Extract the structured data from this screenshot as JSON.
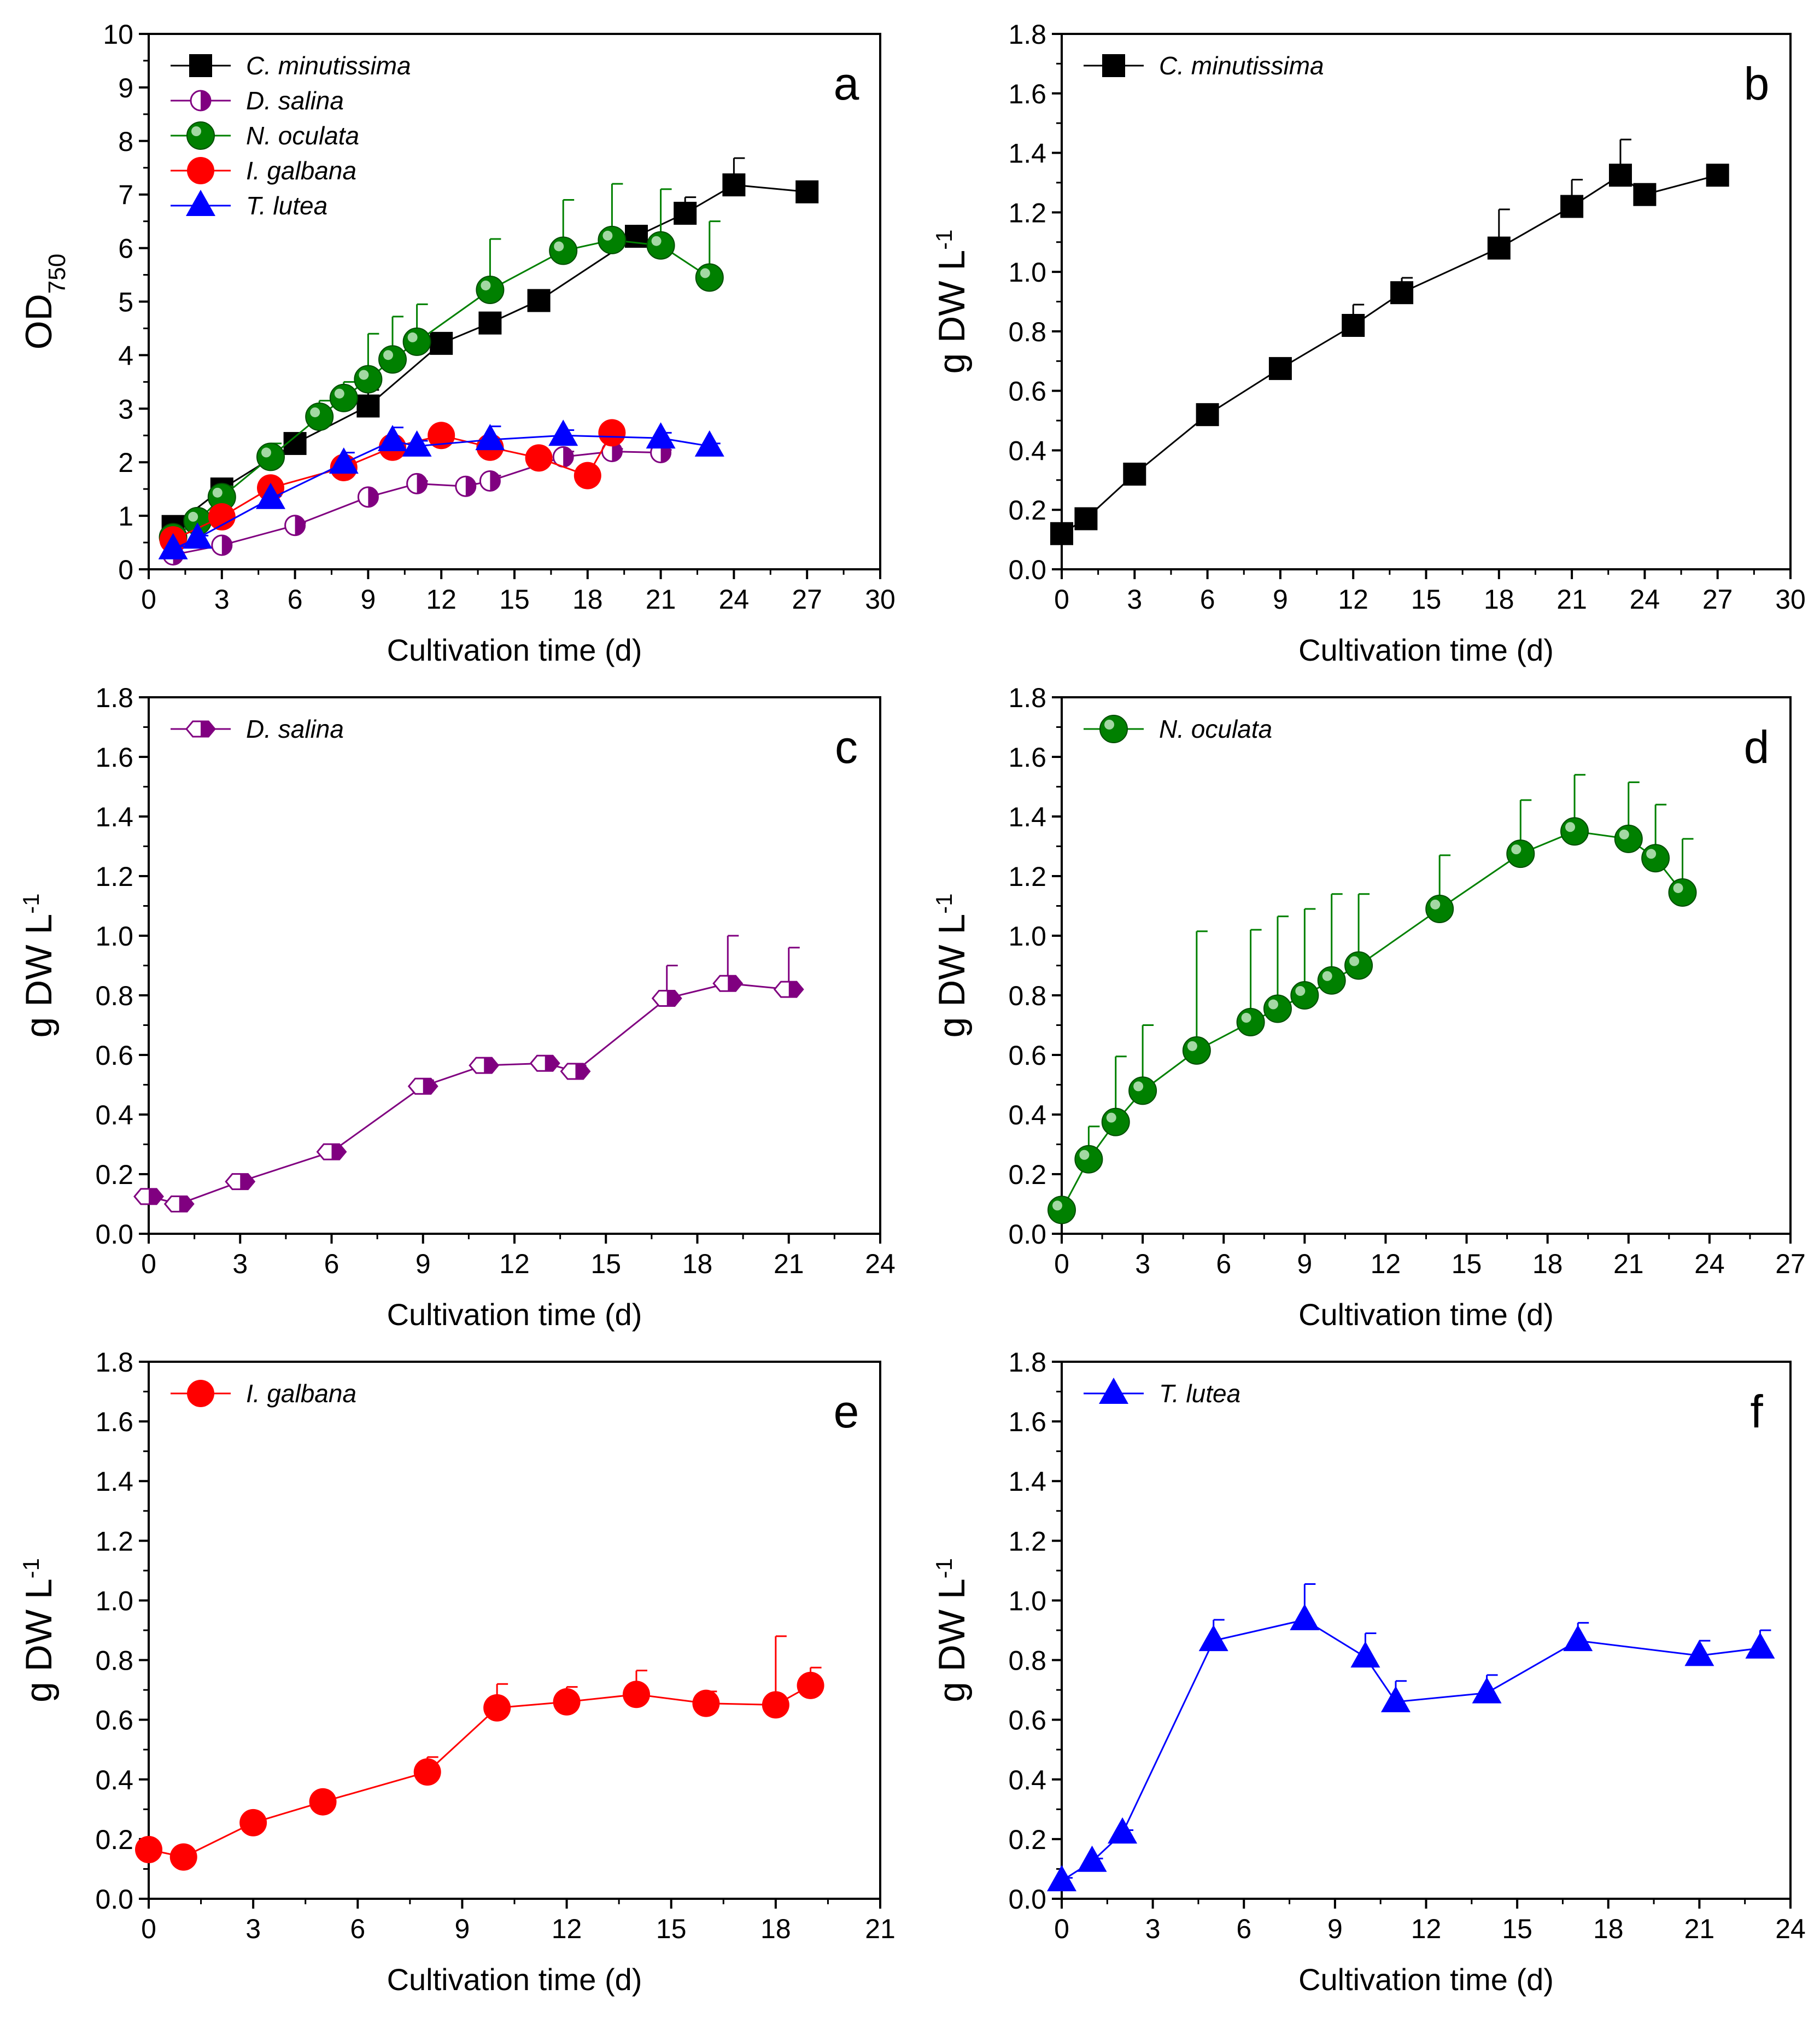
{
  "figure": {
    "panels_count": 6,
    "colors": {
      "black": "#000000",
      "purple": "#800080",
      "green": "#008000",
      "red": "#ff0000",
      "blue": "#0000ff"
    }
  },
  "chart_data": [
    {
      "panel": "a",
      "type": "line",
      "xlabel": "Cultivation time (d)",
      "ylabel_main": "OD",
      "ylabel_sub": "750",
      "xlim": [
        0,
        30
      ],
      "ylim": [
        0,
        10
      ],
      "xticks": [
        0,
        3,
        6,
        9,
        12,
        15,
        18,
        21,
        24,
        27,
        30
      ],
      "xtick_labels": [
        "0",
        "3",
        "6",
        "9",
        "12",
        "15",
        "18",
        "21",
        "24",
        "27",
        "30"
      ],
      "yticks": [
        0,
        1,
        2,
        3,
        4,
        5,
        6,
        7,
        8,
        9,
        10
      ],
      "ytick_labels": [
        "0",
        "1",
        "2",
        "3",
        "4",
        "5",
        "6",
        "7",
        "8",
        "9",
        "10"
      ],
      "legend_position": "top-left",
      "series": [
        {
          "name": "C. minutissima",
          "color": "#000000",
          "marker": "square",
          "x": [
            1,
            3,
            6,
            9,
            12,
            14,
            16,
            20,
            22,
            24,
            27
          ],
          "y": [
            0.8,
            1.5,
            2.35,
            3.05,
            4.22,
            4.6,
            5.02,
            6.22,
            6.65,
            7.18,
            7.05
          ],
          "err": [
            0.08,
            0.08,
            0.1,
            0.3,
            0.15,
            0.05,
            0.05,
            0.2,
            0.3,
            0.5,
            0.05
          ]
        },
        {
          "name": "D. salina",
          "color": "#800080",
          "marker": "halfcircle",
          "x": [
            1,
            3,
            6,
            9,
            11,
            13,
            14,
            17,
            19,
            21
          ],
          "y": [
            0.27,
            0.45,
            0.82,
            1.35,
            1.6,
            1.55,
            1.65,
            2.1,
            2.2,
            2.18
          ],
          "err": [
            0.05,
            0.05,
            0.05,
            0.05,
            0.05,
            0.05,
            0.1,
            0.1,
            0.05,
            0.05
          ]
        },
        {
          "name": "N. oculata",
          "color": "#008000",
          "marker": "sphere",
          "x": [
            1,
            2,
            3,
            5,
            7,
            8,
            9,
            10,
            11,
            14,
            17,
            19,
            21,
            23
          ],
          "y": [
            0.6,
            0.9,
            1.35,
            2.1,
            2.85,
            3.2,
            3.55,
            3.92,
            4.25,
            5.22,
            5.95,
            6.15,
            6.05,
            5.45
          ],
          "err": [
            0.1,
            0.1,
            0.2,
            0.25,
            0.3,
            0.3,
            0.85,
            0.8,
            0.7,
            0.95,
            0.95,
            1.05,
            1.05,
            1.05
          ]
        },
        {
          "name": "I. galbana",
          "color": "#ff0000",
          "marker": "circle",
          "x": [
            1,
            3,
            5,
            8,
            10,
            12,
            14,
            16,
            18,
            19
          ],
          "y": [
            0.55,
            0.98,
            1.52,
            1.9,
            2.28,
            2.5,
            2.28,
            2.08,
            1.75,
            2.55
          ],
          "err": [
            0.05,
            0.05,
            0.05,
            0.1,
            0.05,
            0.05,
            0.1,
            0.1,
            0.1,
            0.05
          ]
        },
        {
          "name": "T. lutea",
          "color": "#0000ff",
          "marker": "triangle",
          "x": [
            1,
            2,
            5,
            8,
            10,
            11,
            14,
            17,
            21,
            23
          ],
          "y": [
            0.38,
            0.58,
            1.32,
            1.98,
            2.4,
            2.3,
            2.42,
            2.5,
            2.45,
            2.3
          ],
          "err": [
            0.05,
            0.05,
            0.05,
            0.2,
            0.25,
            0.1,
            0.25,
            0.1,
            0.1,
            0.05
          ]
        }
      ]
    },
    {
      "panel": "b",
      "type": "line",
      "xlabel": "Cultivation time (d)",
      "ylabel_main": "g DW L",
      "ylabel_sup": "-1",
      "xlim": [
        0,
        30
      ],
      "ylim": [
        0,
        1.8
      ],
      "xticks": [
        0,
        3,
        6,
        9,
        12,
        15,
        18,
        21,
        24,
        27,
        30
      ],
      "xtick_labels": [
        "0",
        "3",
        "6",
        "9",
        "12",
        "15",
        "18",
        "21",
        "24",
        "27",
        "30"
      ],
      "yticks": [
        0,
        0.2,
        0.4,
        0.6,
        0.8,
        1.0,
        1.2,
        1.4,
        1.6,
        1.8
      ],
      "ytick_labels": [
        "0.0",
        "0.2",
        "0.4",
        "0.6",
        "0.8",
        "1.0",
        "1.2",
        "1.4",
        "1.6",
        "1.8"
      ],
      "legend_position": "top-left",
      "series": [
        {
          "name": "C. minutissima",
          "color": "#000000",
          "marker": "square",
          "x": [
            0,
            1,
            3,
            6,
            9,
            12,
            14,
            18,
            21,
            23,
            24,
            27
          ],
          "y": [
            0.12,
            0.17,
            0.32,
            0.52,
            0.675,
            0.82,
            0.93,
            1.08,
            1.22,
            1.325,
            1.26,
            1.325
          ],
          "err": [
            0.01,
            0.01,
            0.01,
            0.03,
            0.02,
            0.07,
            0.05,
            0.13,
            0.09,
            0.12,
            0.01,
            0.01
          ]
        }
      ]
    },
    {
      "panel": "c",
      "type": "line",
      "xlabel": "Cultivation time (d)",
      "ylabel_main": "g DW L",
      "ylabel_sup": "-1",
      "xlim": [
        0,
        24
      ],
      "ylim": [
        0,
        1.8
      ],
      "xticks": [
        0,
        3,
        6,
        9,
        12,
        15,
        18,
        21,
        24
      ],
      "xtick_labels": [
        "0",
        "3",
        "6",
        "9",
        "12",
        "15",
        "18",
        "21",
        "24"
      ],
      "yticks": [
        0,
        0.2,
        0.4,
        0.6,
        0.8,
        1.0,
        1.2,
        1.4,
        1.6,
        1.8
      ],
      "ytick_labels": [
        "0.0",
        "0.2",
        "0.4",
        "0.6",
        "0.8",
        "1.0",
        "1.2",
        "1.4",
        "1.6",
        "1.8"
      ],
      "legend_position": "top-left",
      "series": [
        {
          "name": "D. salina",
          "color": "#800080",
          "marker": "hexagon",
          "x": [
            0,
            1,
            3,
            6,
            9,
            11,
            13,
            14,
            17,
            19,
            21
          ],
          "y": [
            0.125,
            0.1,
            0.175,
            0.275,
            0.495,
            0.565,
            0.572,
            0.545,
            0.79,
            0.84,
            0.82
          ],
          "err": [
            0.01,
            0.01,
            0.01,
            0.01,
            0.02,
            0.01,
            0.01,
            0.02,
            0.11,
            0.16,
            0.14
          ]
        }
      ]
    },
    {
      "panel": "d",
      "type": "line",
      "xlabel": "Cultivation time (d)",
      "ylabel_main": "g DW L",
      "ylabel_sup": "-1",
      "xlim": [
        0,
        27
      ],
      "ylim": [
        0,
        1.8
      ],
      "xticks": [
        0,
        3,
        6,
        9,
        12,
        15,
        18,
        21,
        24,
        27
      ],
      "xtick_labels": [
        "0",
        "3",
        "6",
        "9",
        "12",
        "15",
        "18",
        "21",
        "24",
        "27"
      ],
      "yticks": [
        0,
        0.2,
        0.4,
        0.6,
        0.8,
        1.0,
        1.2,
        1.4,
        1.6,
        1.8
      ],
      "ytick_labels": [
        "0.0",
        "0.2",
        "0.4",
        "0.6",
        "0.8",
        "1.0",
        "1.2",
        "1.4",
        "1.6",
        "1.8"
      ],
      "legend_position": "top-left",
      "series": [
        {
          "name": "N. oculata",
          "color": "#008000",
          "marker": "sphere",
          "x": [
            0,
            1,
            2,
            3,
            5,
            7,
            8,
            9,
            10,
            11,
            14,
            17,
            19,
            21,
            22,
            23
          ],
          "y": [
            0.08,
            0.25,
            0.375,
            0.48,
            0.615,
            0.71,
            0.755,
            0.8,
            0.85,
            0.9,
            1.09,
            1.275,
            1.35,
            1.325,
            1.26,
            1.145
          ],
          "err": [
            0.01,
            0.11,
            0.22,
            0.22,
            0.4,
            0.31,
            0.31,
            0.29,
            0.29,
            0.24,
            0.18,
            0.18,
            0.19,
            0.19,
            0.18,
            0.18
          ]
        }
      ]
    },
    {
      "panel": "e",
      "type": "line",
      "xlabel": "Cultivation time (d)",
      "ylabel_main": "g DW L",
      "ylabel_sup": "-1",
      "xlim": [
        0,
        21
      ],
      "ylim": [
        0,
        1.8
      ],
      "xticks": [
        0,
        3,
        6,
        9,
        12,
        15,
        18,
        21
      ],
      "xtick_labels": [
        "0",
        "3",
        "6",
        "9",
        "12",
        "15",
        "18",
        "21"
      ],
      "yticks": [
        0,
        0.2,
        0.4,
        0.6,
        0.8,
        1.0,
        1.2,
        1.4,
        1.6,
        1.8
      ],
      "ytick_labels": [
        "0.0",
        "0.2",
        "0.4",
        "0.6",
        "0.8",
        "1.0",
        "1.2",
        "1.4",
        "1.6",
        "1.8"
      ],
      "legend_position": "top-left",
      "series": [
        {
          "name": "I. galbana",
          "color": "#ff0000",
          "marker": "circle",
          "x": [
            0,
            1,
            3,
            5,
            8,
            10,
            12,
            14,
            16,
            18,
            19
          ],
          "y": [
            0.165,
            0.14,
            0.255,
            0.325,
            0.425,
            0.64,
            0.66,
            0.685,
            0.655,
            0.65,
            0.715
          ],
          "err": [
            0.01,
            0.01,
            0.01,
            0.01,
            0.05,
            0.08,
            0.05,
            0.08,
            0.04,
            0.23,
            0.06
          ]
        }
      ]
    },
    {
      "panel": "f",
      "type": "line",
      "xlabel": "Cultivation time (d)",
      "ylabel_main": "g DW L",
      "ylabel_sup": "-1",
      "xlim": [
        0,
        24
      ],
      "ylim": [
        0,
        1.8
      ],
      "xticks": [
        0,
        3,
        6,
        9,
        12,
        15,
        18,
        21,
        24
      ],
      "xtick_labels": [
        "0",
        "3",
        "6",
        "9",
        "12",
        "15",
        "18",
        "21",
        "24"
      ],
      "yticks": [
        0,
        0.2,
        0.4,
        0.6,
        0.8,
        1.0,
        1.2,
        1.4,
        1.6,
        1.8
      ],
      "ytick_labels": [
        "0.0",
        "0.2",
        "0.4",
        "0.6",
        "0.8",
        "1.0",
        "1.2",
        "1.4",
        "1.6",
        "1.8"
      ],
      "legend_position": "top-left",
      "series": [
        {
          "name": "T. lutea",
          "color": "#0000ff",
          "marker": "triangle",
          "x": [
            0,
            1,
            2,
            5,
            8,
            10,
            11,
            14,
            17,
            21,
            23
          ],
          "y": [
            0.06,
            0.125,
            0.22,
            0.865,
            0.935,
            0.81,
            0.66,
            0.69,
            0.865,
            0.815,
            0.84
          ],
          "err": [
            0.01,
            0.01,
            0.01,
            0.07,
            0.12,
            0.08,
            0.07,
            0.06,
            0.06,
            0.05,
            0.06
          ]
        }
      ]
    }
  ]
}
